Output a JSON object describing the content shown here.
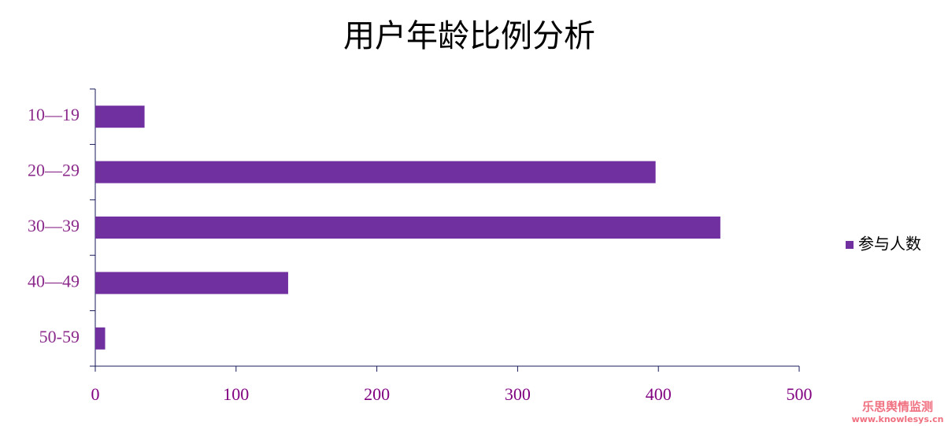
{
  "chart_data": {
    "type": "bar",
    "orientation": "horizontal",
    "title": "用户年龄比例分析",
    "categories": [
      "10—19",
      "20—29",
      "30—39",
      "40—49",
      "50-59"
    ],
    "series": [
      {
        "name": "参与人数",
        "color": "#7030a0",
        "values": [
          35,
          398,
          444,
          137,
          7
        ]
      }
    ],
    "xlim": [
      0,
      500
    ],
    "xticks": [
      0,
      100,
      200,
      300,
      400,
      500
    ],
    "legend": "right"
  },
  "watermark": {
    "name": "乐思舆情监测",
    "url": "www.knowlesys.cn"
  }
}
